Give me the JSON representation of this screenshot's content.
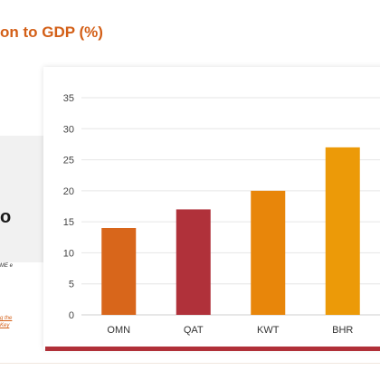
{
  "header": {
    "title": "on to GDP (%)"
  },
  "side_panel": {
    "glyph": "o",
    "small_text": "ME e",
    "link_text": "g the Key"
  },
  "colors": {
    "title": "#d35f17",
    "footer_bar": "#b03038"
  },
  "chart_data": {
    "type": "bar",
    "categories": [
      "OMN",
      "QAT",
      "KWT",
      "BHR"
    ],
    "values": [
      14,
      17,
      20,
      27
    ],
    "bar_colors": [
      "#d8661b",
      "#b0313a",
      "#e8860a",
      "#ec9a08"
    ],
    "ylim": [
      0,
      35
    ],
    "yticks": [
      0,
      5,
      10,
      15,
      20,
      25,
      30,
      35
    ],
    "grid": true,
    "title": "",
    "xlabel": "",
    "ylabel": ""
  }
}
